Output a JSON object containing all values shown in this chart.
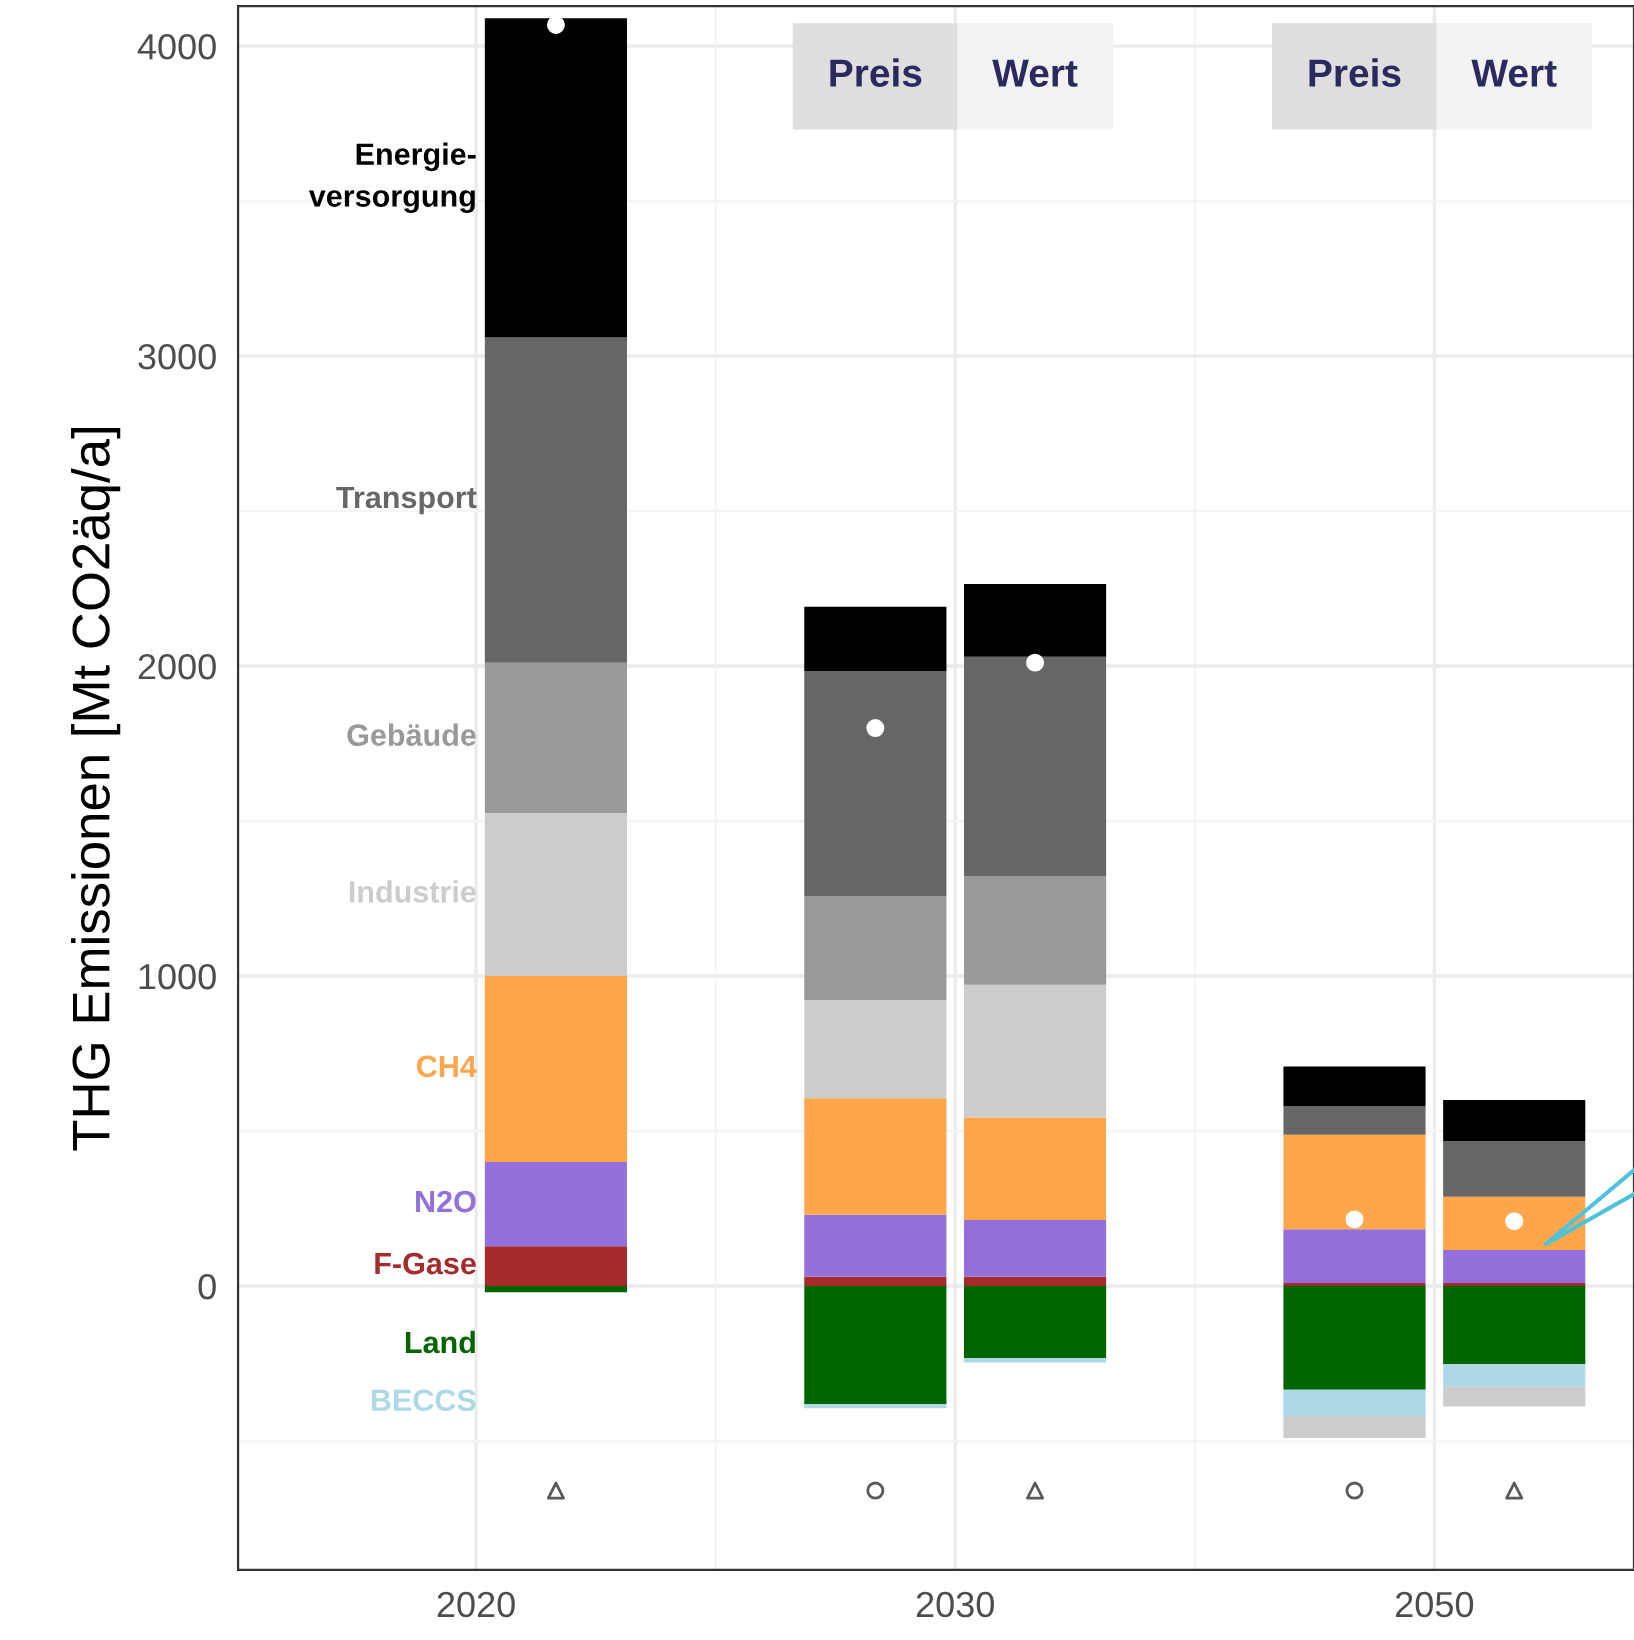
{
  "chart_data": {
    "type": "bar",
    "stacked": true,
    "ylabel": "THG Emissionen [Mt CO2äq/a]",
    "categories": [
      "2020",
      null,
      null,
      null,
      null,
      null,
      "2030",
      null,
      null,
      null,
      null,
      null,
      "2050",
      null
    ],
    "ylim": [
      -916,
      4129
    ],
    "yticks": [
      0,
      1000,
      2000,
      3000,
      4000
    ],
    "grid": true,
    "series": [
      {
        "name": "F-Gase",
        "color": "#a52a2a",
        "values": [
          null,
          128,
          null,
          null,
          null,
          30,
          null,
          30,
          null,
          null,
          null,
          10,
          null,
          10
        ]
      },
      {
        "name": "N2O",
        "color": "#9370db",
        "values": [
          null,
          272,
          null,
          null,
          null,
          200,
          null,
          183,
          null,
          null,
          null,
          173,
          null,
          106
        ]
      },
      {
        "name": "CH4",
        "color": "#ffa64d",
        "values": [
          null,
          600,
          null,
          null,
          null,
          376,
          null,
          331,
          null,
          null,
          null,
          305,
          null,
          172
        ]
      },
      {
        "name": "Industrie",
        "color": "#cccccc",
        "values": [
          null,
          526,
          null,
          null,
          null,
          317,
          null,
          428,
          null,
          null,
          null,
          null,
          null,
          null
        ]
      },
      {
        "name": "Gebäude",
        "color": "#999999",
        "values": [
          null,
          485,
          null,
          null,
          null,
          335,
          null,
          351,
          null,
          null,
          null,
          null,
          null,
          null
        ]
      },
      {
        "name": "Transport",
        "color": "#666666",
        "values": [
          null,
          1049,
          null,
          null,
          null,
          725,
          null,
          707,
          null,
          null,
          null,
          93,
          null,
          179
        ]
      },
      {
        "name": "Energie-\nversorgung",
        "color": "#000000",
        "values": [
          null,
          1030,
          null,
          null,
          null,
          208,
          null,
          235,
          null,
          null,
          null,
          127,
          null,
          133
        ]
      },
      {
        "name": "Land",
        "color": "#006400",
        "values": [
          null,
          -20,
          null,
          null,
          null,
          -381,
          null,
          -232,
          null,
          null,
          null,
          -335,
          null,
          -252
        ]
      },
      {
        "name": "BECCS",
        "color": "#add8e6",
        "values": [
          null,
          null,
          null,
          null,
          null,
          -13,
          null,
          -15,
          null,
          null,
          null,
          -84,
          null,
          -73
        ]
      },
      {
        "color": "#cccccc",
        "values": [
          null,
          null,
          null,
          null,
          null,
          null,
          null,
          null,
          null,
          null,
          null,
          -71,
          null,
          -64
        ]
      },
      {
        "type": "scatter",
        "marker": "circle",
        "color": "#ffffff",
        "values": [
          null,
          4068,
          null,
          null,
          null,
          1800,
          null,
          2011,
          null,
          null,
          null,
          215,
          null,
          209
        ]
      },
      {
        "type": "scatter",
        "marker": "triangle",
        "color": "#595959",
        "values": [
          null,
          -660,
          null,
          null,
          null,
          null,
          null,
          -660,
          null,
          null,
          null,
          null,
          null,
          -660
        ]
      },
      {
        "type": "scatter",
        "marker": "circle",
        "color": "#595959",
        "values": [
          null,
          null,
          null,
          null,
          null,
          -660,
          null,
          null,
          null,
          null,
          null,
          -660,
          null,
          null
        ]
      }
    ],
    "annotations": [
      "Preis",
      "Wert",
      "Preis",
      "Wert"
    ]
  }
}
